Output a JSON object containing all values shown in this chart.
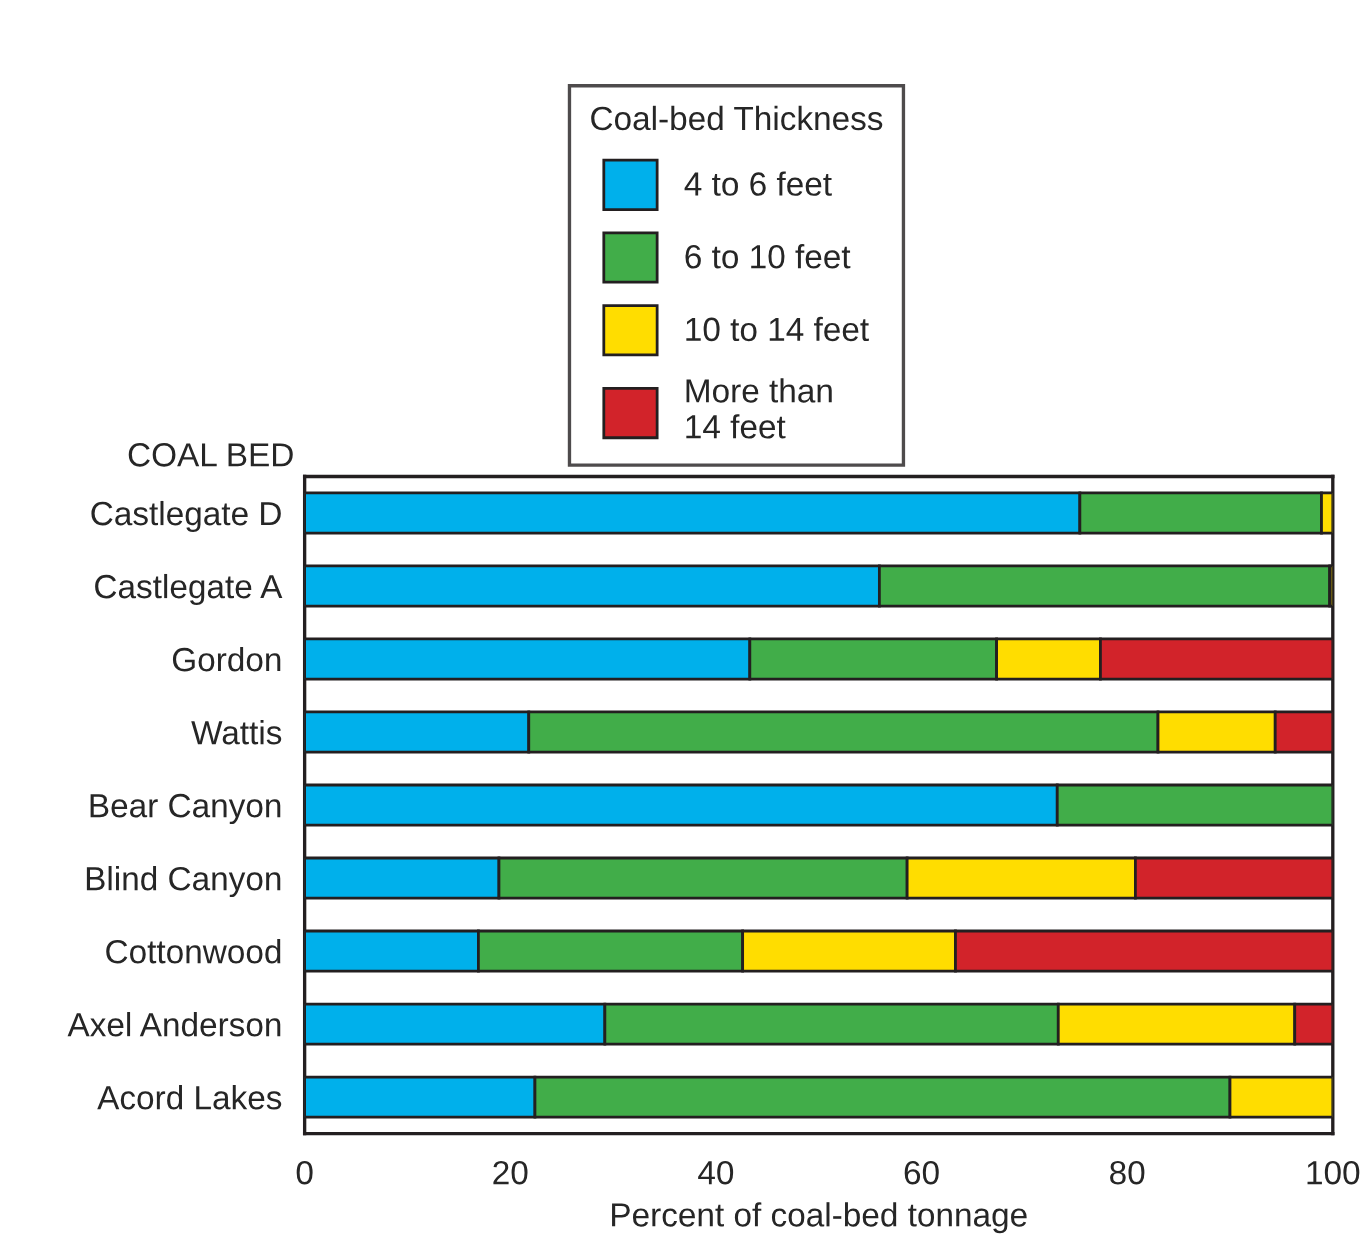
{
  "chart_data": {
    "type": "bar",
    "orientation": "horizontal",
    "stacked": true,
    "categories": [
      "Castlegate D",
      "Castlegate A",
      "Gordon",
      "Wattis",
      "Bear Canyon",
      "Blind Canyon",
      "Cottonwood",
      "Axel Anderson",
      "Acord Lakes"
    ],
    "series": [
      {
        "name": "4 to 6 feet",
        "color": "#00b0eb",
        "values": [
          75.4,
          55.9,
          43.3,
          21.8,
          73.2,
          18.9,
          16.9,
          29.2,
          22.4
        ]
      },
      {
        "name": "6 to 10 feet",
        "color": "#41ad49",
        "values": [
          23.5,
          43.8,
          24.0,
          61.2,
          26.8,
          39.7,
          25.7,
          44.1,
          67.6
        ]
      },
      {
        "name": "10 to 14 feet",
        "color": "#ffdd00",
        "values": [
          1.1,
          0.3,
          10.1,
          11.4,
          null,
          22.2,
          20.7,
          23.0,
          10.0
        ]
      },
      {
        "name": "More than\n14 feet",
        "color": "#d2232a",
        "values": [
          null,
          null,
          22.6,
          5.6,
          null,
          19.2,
          36.7,
          3.7,
          null
        ]
      }
    ],
    "xlim": [
      0,
      100
    ],
    "xticks": [
      0,
      20,
      40,
      60,
      80,
      100
    ],
    "xlabel": "Percent of coal-bed tonnage",
    "ylabel": "COAL BED",
    "legend_title": "Coal-bed Thickness",
    "legend": "top",
    "grid": false
  }
}
